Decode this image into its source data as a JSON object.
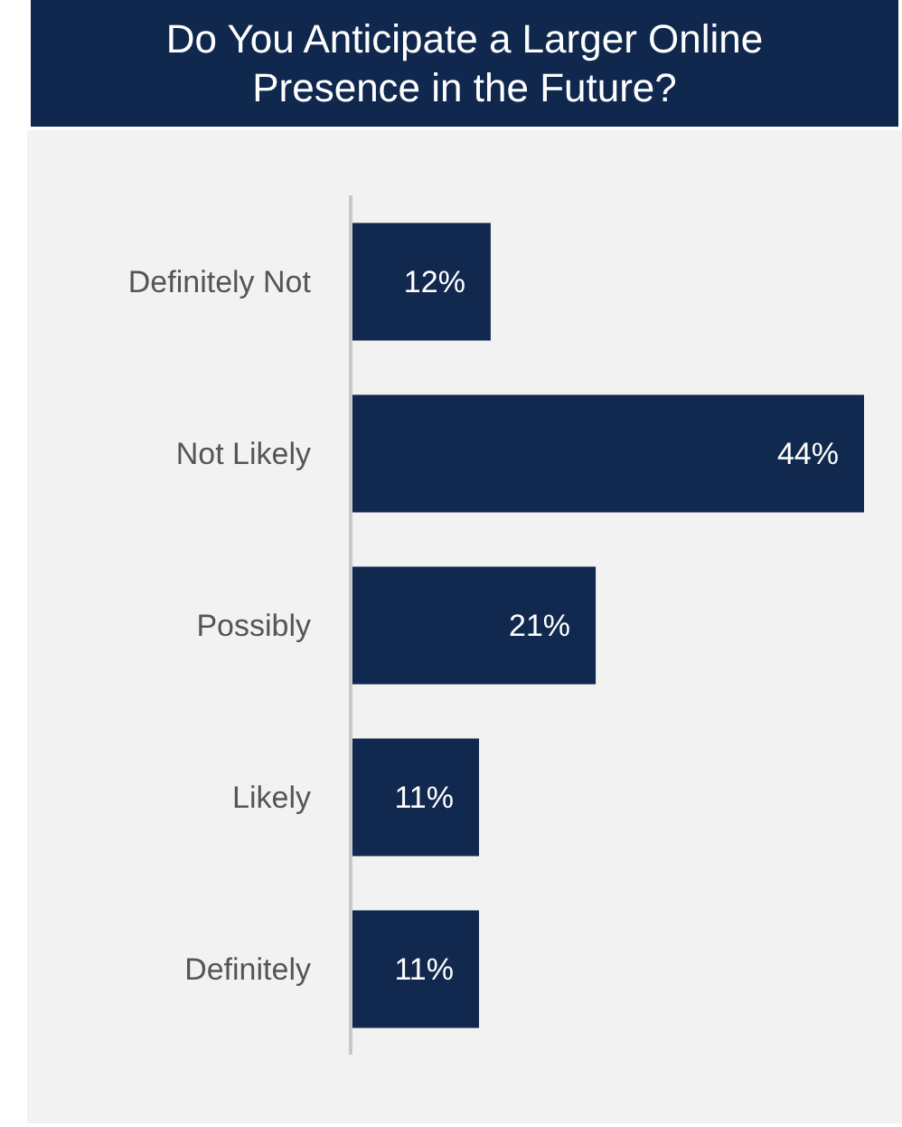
{
  "chart_data": {
    "type": "bar",
    "orientation": "horizontal",
    "title": "Do You Anticipate a Larger Online Presence in the Future?",
    "categories": [
      "Definitely Not",
      "Not Likely",
      "Possibly",
      "Likely",
      "Definitely"
    ],
    "values": [
      12,
      44,
      21,
      11,
      11
    ],
    "color": "#12294f",
    "data_labels": true,
    "value_labels": [
      "12%",
      "44%",
      "21%",
      "11%",
      "11%"
    ]
  }
}
